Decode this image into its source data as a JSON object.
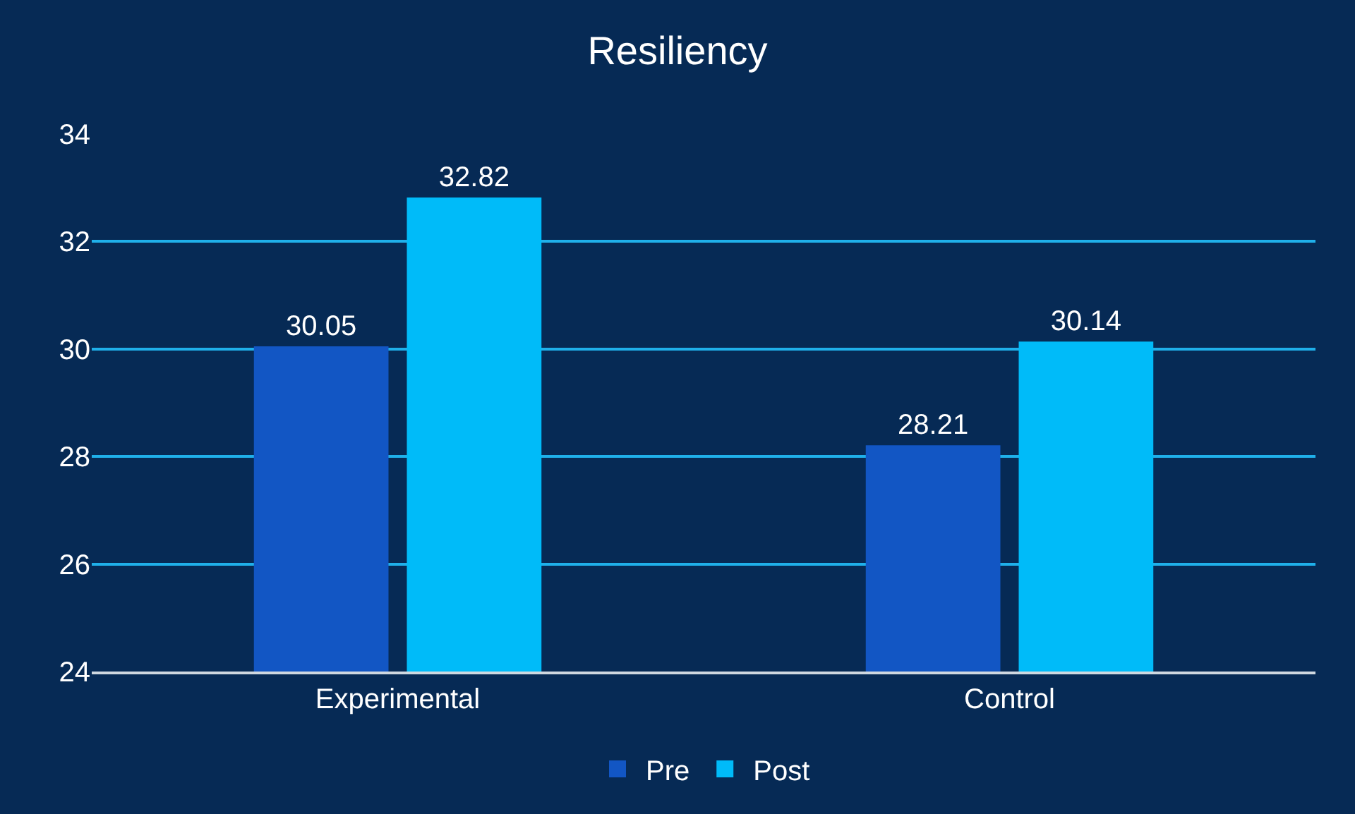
{
  "chart_data": {
    "type": "bar",
    "title": "Resiliency",
    "categories": [
      "Experimental",
      "Control"
    ],
    "series": [
      {
        "name": "Pre",
        "color": "#1256c4",
        "values": [
          30.05,
          28.21
        ]
      },
      {
        "name": "Post",
        "color": "#00bbf9",
        "values": [
          32.82,
          30.14
        ]
      }
    ],
    "ylim": [
      24,
      34
    ],
    "yticks": [
      24,
      26,
      28,
      30,
      32,
      34
    ],
    "grid": "y",
    "legend": "bottom",
    "data_labels": true
  }
}
